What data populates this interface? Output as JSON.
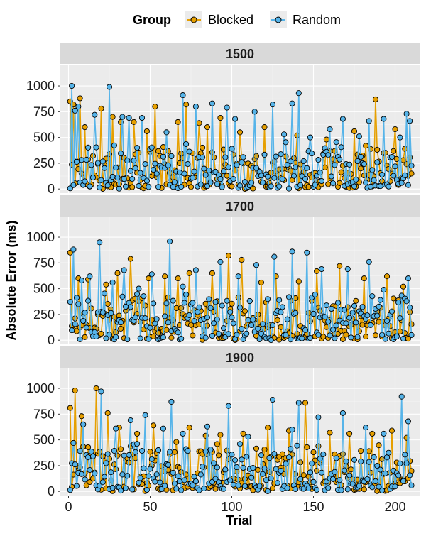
{
  "legend": {
    "title": "Group",
    "items": [
      {
        "label": "Blocked",
        "color": "#E69F00"
      },
      {
        "label": "Random",
        "color": "#56B4E9"
      }
    ]
  },
  "axes": {
    "xlabel": "Trial",
    "ylabel": "Absolute Error (ms)"
  },
  "chart_data": {
    "type": "line",
    "layout": "faceted (3 rows)",
    "facet_variable": "panel",
    "x_ticks": [
      0,
      50,
      100,
      150,
      200
    ],
    "y_ticks": [
      0,
      250,
      500,
      750,
      1000
    ],
    "xlim": [
      -5,
      215
    ],
    "ylim": [
      -40,
      1200
    ],
    "grid": true,
    "legend_position": "top",
    "markers": "filled circles with black outline, joined by lines",
    "n_trials_per_group": 210,
    "panels": [
      {
        "title": "1500",
        "series": [
          {
            "name": "Blocked",
            "color": "#E69F00",
            "highlights": [
              [
                1,
                850
              ],
              [
                3,
                820
              ],
              [
                7,
                880
              ],
              [
                10,
                600
              ],
              [
                20,
                780
              ],
              [
                27,
                700
              ],
              [
                32,
                650
              ],
              [
                40,
                650
              ],
              [
                48,
                560
              ],
              [
                53,
                800
              ],
              [
                67,
                650
              ],
              [
                72,
                820
              ],
              [
                80,
                640
              ],
              [
                85,
                600
              ],
              [
                93,
                690
              ],
              [
                105,
                550
              ],
              [
                120,
                600
              ],
              [
                140,
                520
              ],
              [
                158,
                480
              ],
              [
                175,
                560
              ],
              [
                188,
                870
              ],
              [
                200,
                580
              ]
            ],
            "typical_range": [
              0,
              400
            ]
          },
          {
            "name": "Random",
            "color": "#56B4E9",
            "highlights": [
              [
                2,
                1000
              ],
              [
                4,
                760
              ],
              [
                6,
                800
              ],
              [
                16,
                720
              ],
              [
                25,
                990
              ],
              [
                33,
                700
              ],
              [
                37,
                690
              ],
              [
                45,
                690
              ],
              [
                60,
                550
              ],
              [
                70,
                910
              ],
              [
                78,
                800
              ],
              [
                88,
                830
              ],
              [
                97,
                790
              ],
              [
                102,
                680
              ],
              [
                114,
                750
              ],
              [
                125,
                820
              ],
              [
                132,
                530
              ],
              [
                137,
                830
              ],
              [
                141,
                930
              ],
              [
                148,
                500
              ],
              [
                160,
                580
              ],
              [
                168,
                680
              ],
              [
                178,
                510
              ],
              [
                184,
                660
              ],
              [
                193,
                680
              ],
              [
                203,
                500
              ],
              [
                207,
                730
              ],
              [
                209,
                660
              ]
            ],
            "typical_range": [
              0,
              450
            ]
          }
        ]
      },
      {
        "title": "1700",
        "series": [
          {
            "name": "Blocked",
            "color": "#E69F00",
            "highlights": [
              [
                1,
                850
              ],
              [
                6,
                600
              ],
              [
                12,
                590
              ],
              [
                23,
                540
              ],
              [
                30,
                650
              ],
              [
                38,
                790
              ],
              [
                49,
                600
              ],
              [
                59,
                620
              ],
              [
                67,
                600
              ],
              [
                74,
                650
              ],
              [
                88,
                650
              ],
              [
                98,
                820
              ],
              [
                106,
                780
              ],
              [
                118,
                560
              ],
              [
                127,
                620
              ],
              [
                141,
                570
              ],
              [
                152,
                670
              ],
              [
                166,
                720
              ],
              [
                181,
                600
              ],
              [
                195,
                620
              ],
              [
                205,
                520
              ]
            ],
            "typical_range": [
              0,
              400
            ]
          },
          {
            "name": "Random",
            "color": "#56B4E9",
            "highlights": [
              [
                3,
                880
              ],
              [
                8,
                580
              ],
              [
                13,
                620
              ],
              [
                19,
                950
              ],
              [
                27,
                560
              ],
              [
                34,
                680
              ],
              [
                43,
                500
              ],
              [
                51,
                640
              ],
              [
                62,
                960
              ],
              [
                70,
                520
              ],
              [
                78,
                680
              ],
              [
                93,
                760
              ],
              [
                104,
                620
              ],
              [
                115,
                730
              ],
              [
                126,
                810
              ],
              [
                137,
                860
              ],
              [
                146,
                850
              ],
              [
                155,
                690
              ],
              [
                171,
                690
              ],
              [
                184,
                760
              ],
              [
                193,
                490
              ],
              [
                208,
                600
              ]
            ],
            "typical_range": [
              0,
              450
            ]
          }
        ]
      },
      {
        "title": "1900",
        "series": [
          {
            "name": "Blocked",
            "color": "#E69F00",
            "highlights": [
              [
                1,
                810
              ],
              [
                4,
                980
              ],
              [
                8,
                730
              ],
              [
                17,
                1000
              ],
              [
                24,
                760
              ],
              [
                31,
                620
              ],
              [
                42,
                560
              ],
              [
                52,
                640
              ],
              [
                66,
                480
              ],
              [
                74,
                620
              ],
              [
                84,
                540
              ],
              [
                93,
                550
              ],
              [
                107,
                560
              ],
              [
                122,
                620
              ],
              [
                135,
                590
              ],
              [
                145,
                860
              ],
              [
                160,
                570
              ],
              [
                172,
                560
              ],
              [
                186,
                560
              ],
              [
                198,
                590
              ],
              [
                207,
                520
              ]
            ],
            "typical_range": [
              0,
              450
            ]
          },
          {
            "name": "Random",
            "color": "#56B4E9",
            "highlights": [
              [
                3,
                470
              ],
              [
                9,
                650
              ],
              [
                20,
                970
              ],
              [
                29,
                610
              ],
              [
                38,
                690
              ],
              [
                47,
                740
              ],
              [
                58,
                610
              ],
              [
                63,
                870
              ],
              [
                70,
                560
              ],
              [
                85,
                630
              ],
              [
                98,
                830
              ],
              [
                110,
                530
              ],
              [
                125,
                890
              ],
              [
                137,
                600
              ],
              [
                141,
                860
              ],
              [
                153,
                720
              ],
              [
                168,
                760
              ],
              [
                182,
                620
              ],
              [
                193,
                560
              ],
              [
                204,
                920
              ],
              [
                208,
                680
              ]
            ],
            "typical_range": [
              0,
              450
            ]
          }
        ]
      }
    ]
  }
}
